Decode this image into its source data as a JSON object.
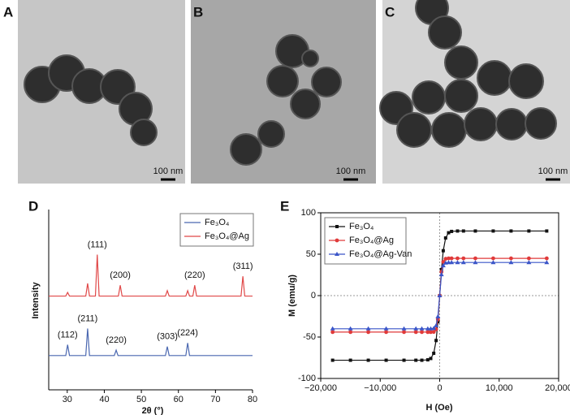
{
  "panels": [
    {
      "label": "A",
      "scale_bar": "100 nm"
    },
    {
      "label": "B",
      "scale_bar": "100 nm"
    },
    {
      "label": "C",
      "scale_bar": "100 nm"
    }
  ],
  "chart_data": [
    {
      "type": "line",
      "panel_label": "D",
      "xlabel": "2θ (°)",
      "ylabel": "Intensity",
      "x": [
        25,
        29.6,
        30.1,
        30.6,
        35,
        35.5,
        36,
        37.6,
        38.1,
        38.6,
        42.7,
        43.2,
        43.7,
        43.8,
        44.3,
        44.8,
        56.5,
        57,
        57.5,
        62,
        62.5,
        63,
        63.9,
        64.4,
        64.9,
        76.9,
        77.4,
        77.9,
        80
      ],
      "series": [
        {
          "name": "Fe₃O₄",
          "color": "#4a67b0",
          "values": [
            19,
            19,
            25,
            19,
            19,
            34,
            19,
            19,
            19,
            19,
            19,
            22,
            19,
            19,
            19,
            19,
            19,
            24,
            19,
            19,
            26,
            19,
            19,
            19,
            19,
            19,
            19,
            19,
            19
          ]
        },
        {
          "name": "Fe₃O₄@Ag",
          "color": "#e04848",
          "values": [
            52,
            52,
            54,
            52,
            52,
            59,
            52,
            52,
            75,
            52,
            52,
            52,
            52,
            52,
            58,
            52,
            52,
            55,
            52,
            52,
            55,
            52,
            52,
            58,
            52,
            52,
            63,
            52,
            52
          ]
        }
      ],
      "annotations": [
        "(111)",
        "(200)",
        "(220)",
        "(311)",
        "(112)",
        "(211)",
        "(220)",
        "(303)",
        "(224)"
      ],
      "xlim": [
        25,
        80
      ],
      "xticks": [
        30,
        40,
        50,
        60,
        70,
        80
      ],
      "ylim": [
        0,
        100
      ],
      "box": false,
      "legend": "upper right"
    },
    {
      "type": "line",
      "panel_label": "E",
      "xlabel": "H (Oe)",
      "ylabel": "M (emu/g)",
      "x": [
        -18000,
        -15000,
        -12000,
        -9000,
        -6000,
        -4000,
        -3000,
        -2000,
        -1500,
        -1000,
        -600,
        -300,
        0,
        300,
        600,
        1000,
        1500,
        2000,
        3000,
        4000,
        6000,
        9000,
        12000,
        15000,
        18000
      ],
      "series": [
        {
          "name": "Fe₃O₄",
          "color": "#111111",
          "marker": "square",
          "values": [
            -78,
            -78,
            -78,
            -78,
            -78,
            -78,
            -78,
            -77.5,
            -75.9,
            -69.6,
            -54.2,
            -31.5,
            0,
            31.5,
            54.2,
            69.6,
            75.9,
            77.5,
            78,
            78,
            78,
            78,
            78,
            78,
            78
          ]
        },
        {
          "name": "Fe₃O₄@Ag",
          "color": "#e03a3a",
          "marker": "circle",
          "values": [
            -44,
            -44,
            -44,
            -44,
            -44,
            -44,
            -44,
            -44,
            -44,
            -43.8,
            -40.7,
            -28.6,
            0,
            28.6,
            40.7,
            44.4,
            45,
            45,
            45,
            45,
            45,
            45,
            45,
            45,
            45
          ]
        },
        {
          "name": "Fe₃O₄@Ag-Van",
          "color": "#3a55c8",
          "marker": "triangle",
          "values": [
            -40,
            -40,
            -40,
            -40,
            -40,
            -40,
            -40,
            -40,
            -40,
            -39.5,
            -36.2,
            -25.4,
            0,
            25.4,
            36.2,
            39.5,
            40,
            40,
            40,
            40,
            40,
            40,
            40,
            40,
            40
          ]
        }
      ],
      "xlim": [
        -20000,
        20000
      ],
      "xticks": [
        {
          "value": -20000,
          "label": "−20,000"
        },
        {
          "value": -10000,
          "label": "−10,000"
        },
        0,
        {
          "value": 10000,
          "label": "10,000"
        },
        {
          "value": 20000,
          "label": "20,000"
        }
      ],
      "ylim": [
        -100,
        100
      ],
      "yticks": [
        -100,
        -50,
        0,
        50,
        100
      ],
      "box": true,
      "zero_lines": true,
      "legend": "upper left"
    }
  ]
}
